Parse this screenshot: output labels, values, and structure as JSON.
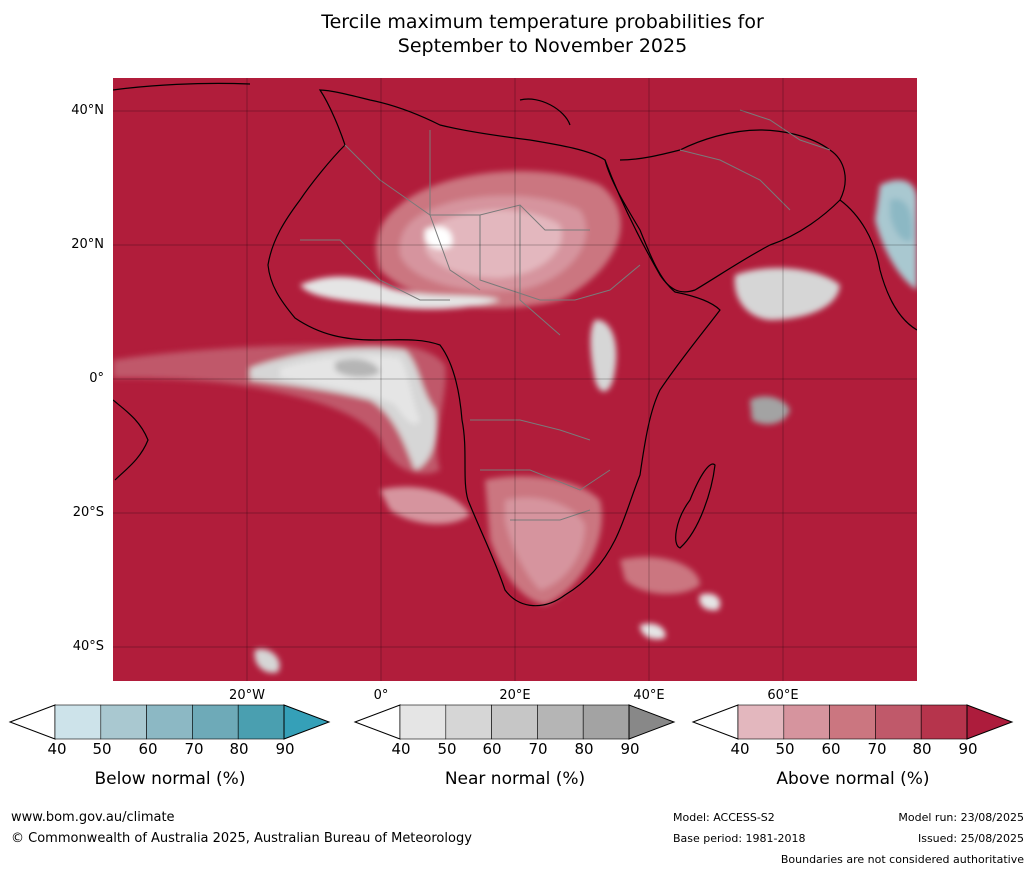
{
  "title": {
    "line1": "Tercile maximum temperature probabilities for",
    "line2": "September to November 2025"
  },
  "map": {
    "lat_labels": [
      "40°N",
      "20°N",
      "0°",
      "20°S",
      "40°S"
    ],
    "lon_labels": [
      "20°W",
      "0°",
      "20°E",
      "40°E",
      "60°E"
    ]
  },
  "colorbars": [
    {
      "title": "Below normal (%)",
      "ticks": [
        "40",
        "50",
        "60",
        "70",
        "80",
        "90"
      ],
      "colors": [
        "#ffffff",
        "#cde3ea",
        "#a9c8d0",
        "#8cb8c4",
        "#6eaab8",
        "#4a9fb0",
        "#35a0b8"
      ]
    },
    {
      "title": "Near normal (%)",
      "ticks": [
        "40",
        "50",
        "60",
        "70",
        "80",
        "90"
      ],
      "colors": [
        "#ffffff",
        "#e5e5e5",
        "#d6d6d6",
        "#c6c6c6",
        "#b5b5b5",
        "#a3a3a3",
        "#888888"
      ]
    },
    {
      "title": "Above normal (%)",
      "ticks": [
        "40",
        "50",
        "60",
        "70",
        "80",
        "90"
      ],
      "colors": [
        "#ffffff",
        "#e3b7be",
        "#d6949e",
        "#cb7680",
        "#c0596a",
        "#b6344c",
        "#ad1c3c"
      ]
    }
  ],
  "footer": {
    "url": "www.bom.gov.au/climate",
    "copyright": "© Commonwealth of Australia 2025, Australian Bureau of Meteorology",
    "model": "Model: ACCESS-S2",
    "base_period": "Base period: 1981-2018",
    "model_run": "Model run: 23/08/2025",
    "issued": "Issued: 25/08/2025",
    "disclaimer": "Boundaries are not considered authoritative"
  }
}
